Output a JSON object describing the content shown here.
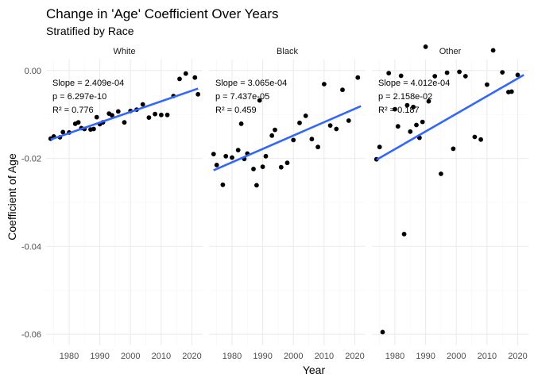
{
  "chart_data": {
    "type": "scatter",
    "title": "Change in 'Age' Coefficient Over Years",
    "subtitle": "Stratified by Race",
    "xlabel": "Year",
    "ylabel": "Coefficient of Age",
    "xlim": [
      1972.5,
      2023.5
    ],
    "ylim": [
      -0.0625,
      0.0025
    ],
    "x_ticks": [
      1980,
      1990,
      2000,
      2010,
      2020
    ],
    "x_tick_labels": [
      "1980",
      "1990",
      "2000",
      "2010",
      "2020"
    ],
    "y_ticks": [
      0,
      -0.02,
      -0.04,
      -0.06
    ],
    "y_tick_labels": [
      "0.00",
      "-0.02",
      "-0.04",
      "-0.06"
    ],
    "grid": true,
    "fit_line_color": "#3366ff",
    "point_color": "#000000",
    "panels": [
      {
        "name": "White",
        "stats": [
          "Slope = 2.409e-04",
          "p = 6.297e-10",
          "R² = 0.776"
        ],
        "fit": [
          [
            1974,
            -0.0157
          ],
          [
            2022,
            -0.0041
          ]
        ],
        "points": [
          [
            1974,
            -0.0155
          ],
          [
            1975,
            -0.015
          ],
          [
            1977,
            -0.0152
          ],
          [
            1978,
            -0.014
          ],
          [
            1980,
            -0.0141
          ],
          [
            1982,
            -0.0121
          ],
          [
            1983,
            -0.0118
          ],
          [
            1984,
            -0.0131
          ],
          [
            1985,
            -0.0133
          ],
          [
            1987,
            -0.0134
          ],
          [
            1988,
            -0.0133
          ],
          [
            1989,
            -0.0106
          ],
          [
            1990,
            -0.0122
          ],
          [
            1991,
            -0.0118
          ],
          [
            1993,
            -0.0098
          ],
          [
            1994,
            -0.0102
          ],
          [
            1996,
            -0.0093
          ],
          [
            1998,
            -0.0118
          ],
          [
            2000,
            -0.0092
          ],
          [
            2002,
            -0.0089
          ],
          [
            2004,
            -0.0077
          ],
          [
            2006,
            -0.0107
          ],
          [
            2008,
            -0.0099
          ],
          [
            2010,
            -0.0101
          ],
          [
            2012,
            -0.0101
          ],
          [
            2014,
            -0.0058
          ],
          [
            2016,
            -0.0019
          ],
          [
            2018,
            -0.0007
          ],
          [
            2021,
            -0.0016
          ],
          [
            2022,
            -0.0054
          ]
        ]
      },
      {
        "name": "Black",
        "stats": [
          "Slope = 3.065e-04",
          "p = 7.437e-05",
          "R² = 0.459"
        ],
        "fit": [
          [
            1974,
            -0.0227
          ],
          [
            2022,
            -0.0081
          ]
        ],
        "points": [
          [
            1974,
            -0.019
          ],
          [
            1975,
            -0.0215
          ],
          [
            1977,
            -0.026
          ],
          [
            1978,
            -0.0195
          ],
          [
            1980,
            -0.0198
          ],
          [
            1982,
            -0.0181
          ],
          [
            1983,
            -0.0121
          ],
          [
            1984,
            -0.0201
          ],
          [
            1985,
            -0.0189
          ],
          [
            1987,
            -0.0224
          ],
          [
            1988,
            -0.0261
          ],
          [
            1989,
            -0.0068
          ],
          [
            1990,
            -0.0219
          ],
          [
            1991,
            -0.0195
          ],
          [
            1993,
            -0.0148
          ],
          [
            1994,
            -0.0135
          ],
          [
            1996,
            -0.022
          ],
          [
            1998,
            -0.021
          ],
          [
            2000,
            -0.0158
          ],
          [
            2002,
            -0.0119
          ],
          [
            2004,
            -0.0103
          ],
          [
            2006,
            -0.0156
          ],
          [
            2008,
            -0.0174
          ],
          [
            2010,
            -0.0031
          ],
          [
            2012,
            -0.0125
          ],
          [
            2014,
            -0.0133
          ],
          [
            2016,
            -0.0044
          ],
          [
            2018,
            -0.0114
          ],
          [
            2021,
            -0.0016
          ]
        ]
      },
      {
        "name": "Other",
        "stats": [
          "Slope = 4.012e-04",
          "p = 2.158e-02",
          "R² = 0.187"
        ],
        "fit": [
          [
            1974,
            -0.0203
          ],
          [
            2022,
            -0.001
          ]
        ],
        "points": [
          [
            1974,
            -0.0202
          ],
          [
            1975,
            -0.0174
          ],
          [
            1976,
            -0.0595
          ],
          [
            1978,
            -0.0006
          ],
          [
            1980,
            -0.0088
          ],
          [
            1981,
            -0.0127
          ],
          [
            1982,
            -0.0012
          ],
          [
            1983,
            -0.0372
          ],
          [
            1984,
            -0.0079
          ],
          [
            1985,
            -0.0139
          ],
          [
            1986,
            -0.0083
          ],
          [
            1987,
            -0.0124
          ],
          [
            1988,
            -0.0153
          ],
          [
            1989,
            -0.0117
          ],
          [
            1990,
            0.0054
          ],
          [
            1991,
            -0.007
          ],
          [
            1993,
            -0.0013
          ],
          [
            1995,
            -0.0235
          ],
          [
            1997,
            -0.0005
          ],
          [
            1999,
            -0.0178
          ],
          [
            2001,
            -0.0003
          ],
          [
            2003,
            -0.0013
          ],
          [
            2006,
            -0.0151
          ],
          [
            2008,
            -0.0157
          ],
          [
            2010,
            -0.0032
          ],
          [
            2012,
            0.0046
          ],
          [
            2015,
            -0.0004
          ],
          [
            2017,
            -0.0049
          ],
          [
            2018,
            -0.0048
          ],
          [
            2020,
            -0.001
          ]
        ]
      }
    ]
  }
}
